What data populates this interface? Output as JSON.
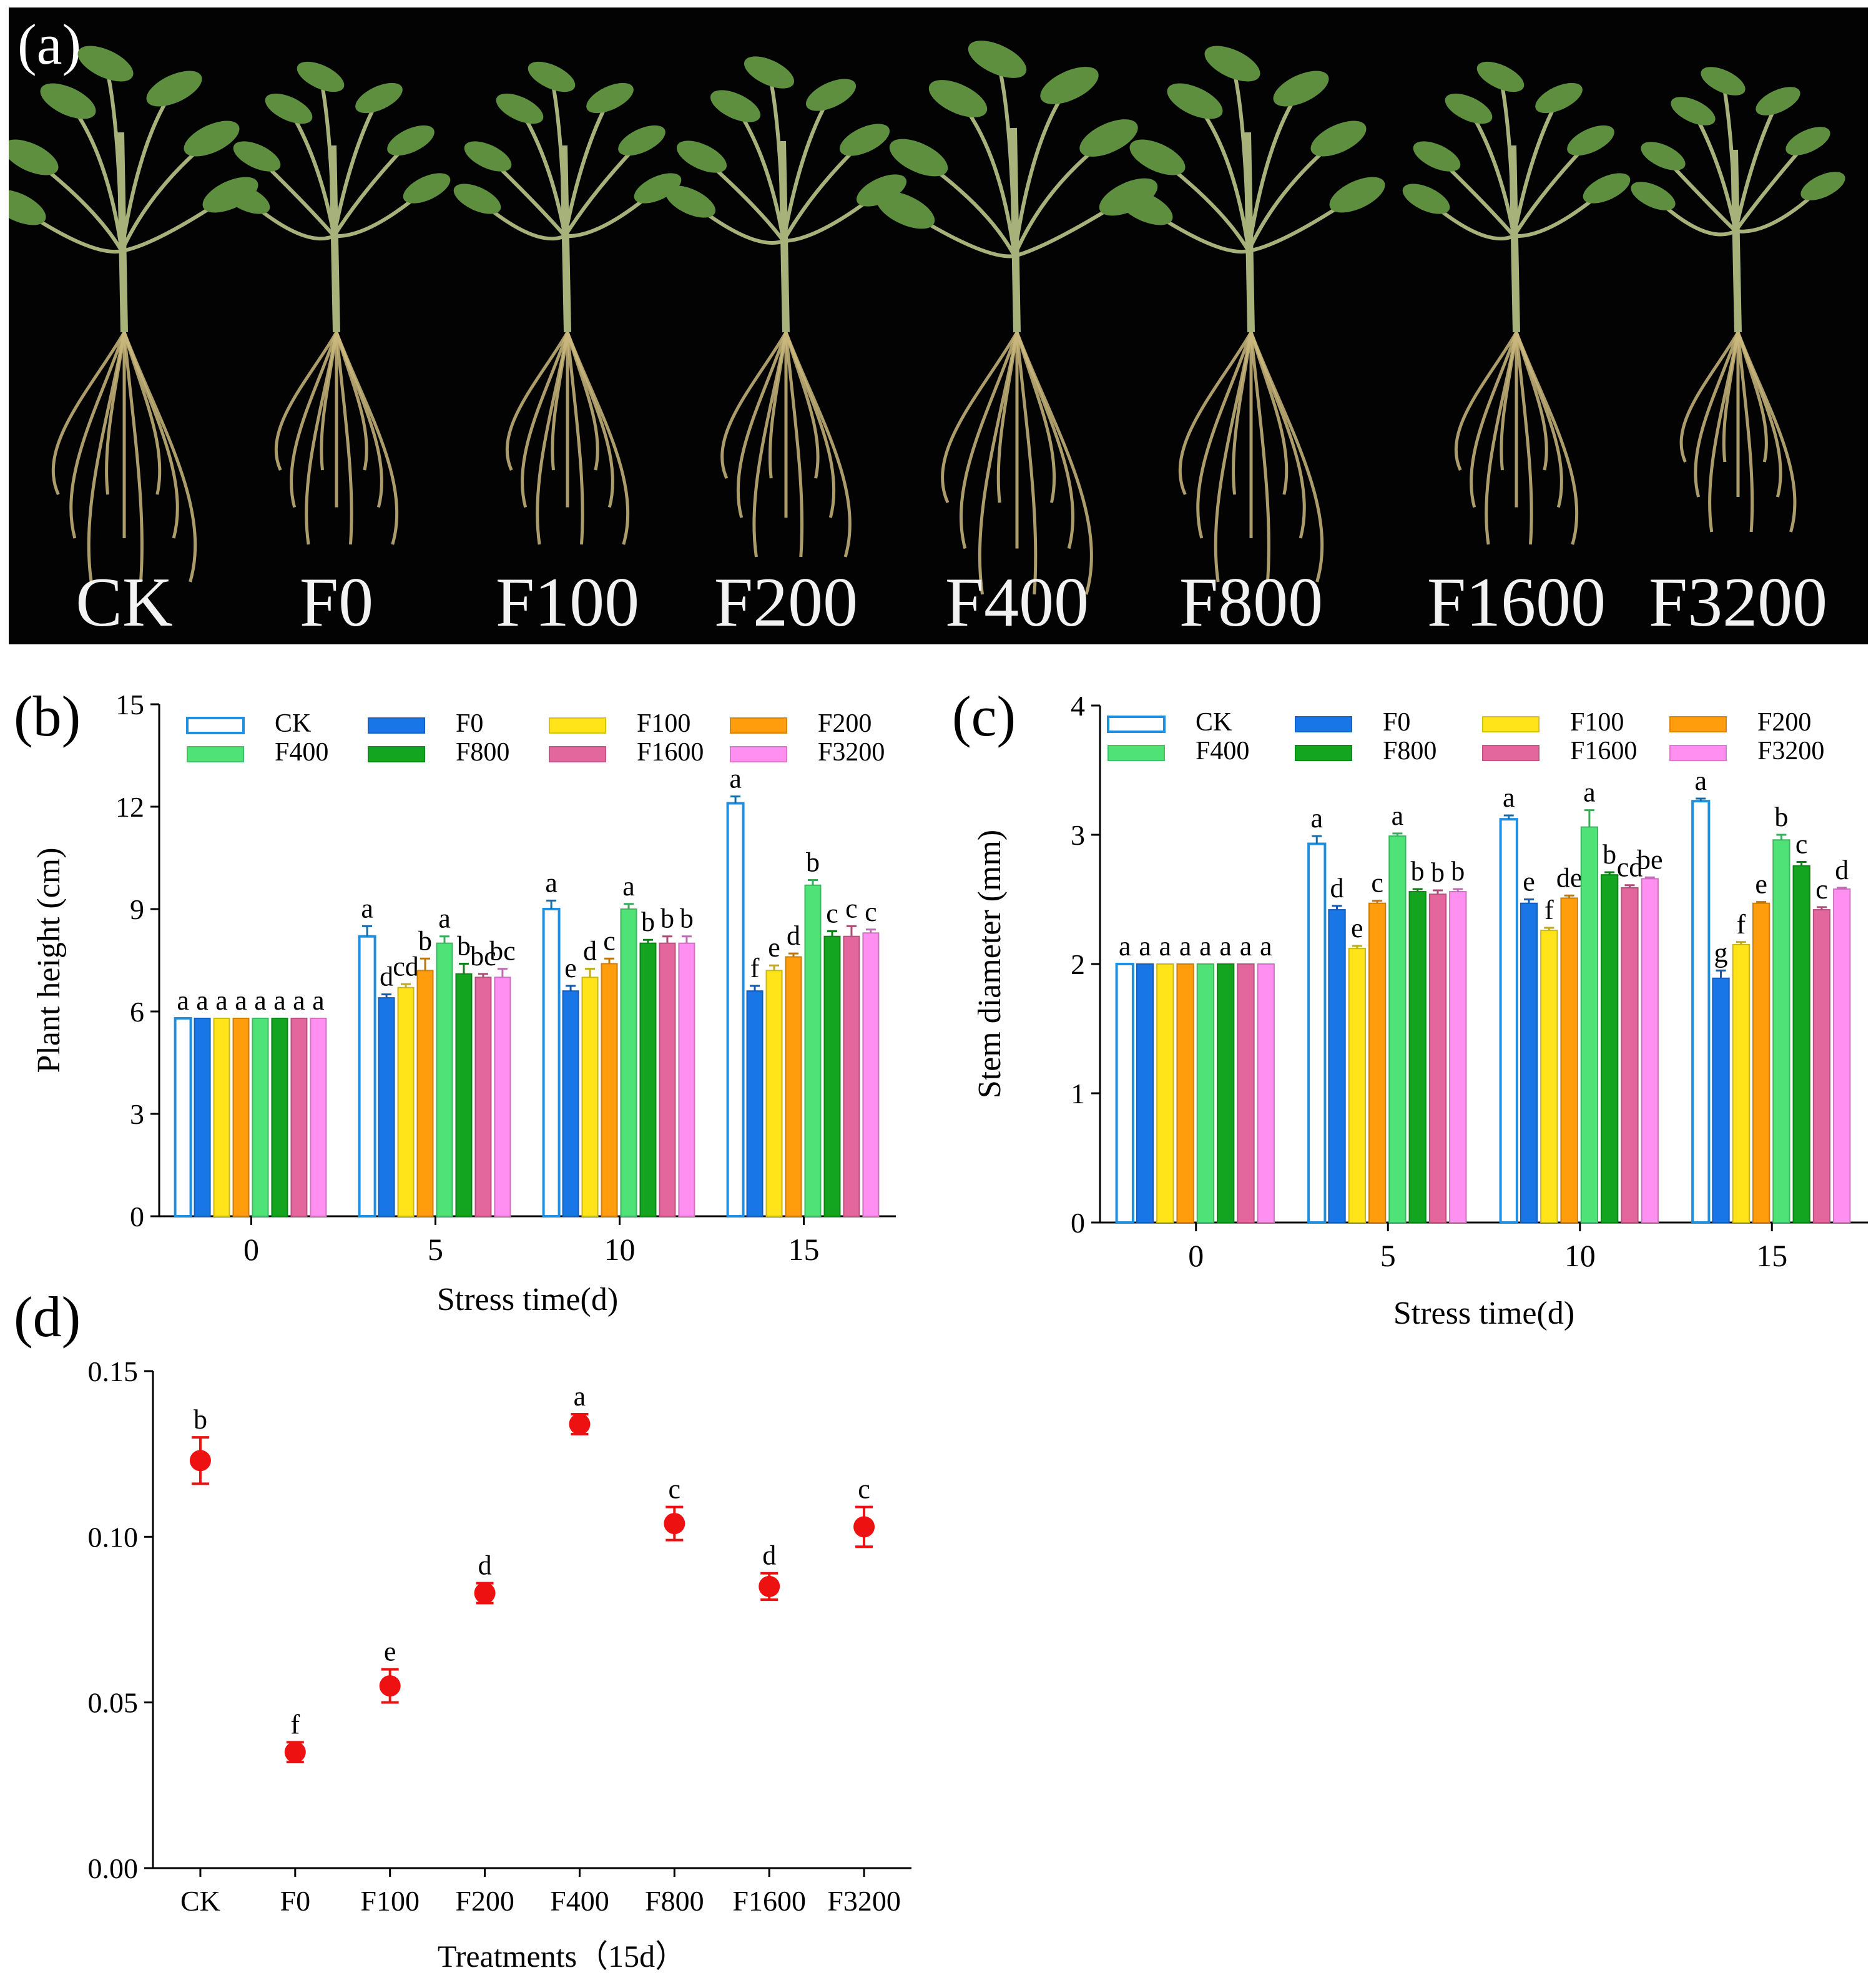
{
  "photo": {
    "label": "(a)",
    "plants": [
      "CK",
      "F0",
      "F100",
      "F200",
      "F400",
      "F800",
      "F1600",
      "F3200"
    ]
  },
  "colors": {
    "CK": "#1f8fe0",
    "F0": "#1976e6",
    "F100": "#ffe41a",
    "F200": "#ff9d0d",
    "F400": "#4fe377",
    "F800": "#13a51f",
    "F1600": "#e3679d",
    "F3200": "#ff8ff0",
    "point": "#ee1111",
    "leaf": "#5e8f3f",
    "stem": "#a7b27a",
    "root": "#c9b77c"
  },
  "chart_data": [
    {
      "id": "b",
      "panel_label": "(b)",
      "type": "bar",
      "title": "",
      "xlabel": "Stress time(d)",
      "ylabel": "Plant height (cm)",
      "categories": [
        "0",
        "5",
        "10",
        "15"
      ],
      "ylim": [
        0,
        15
      ],
      "yticks": [
        "0",
        "3",
        "6",
        "9",
        "12",
        "15"
      ],
      "legend": {
        "placement": "top",
        "order": [
          "CK",
          "F0",
          "F100",
          "F200",
          "F400",
          "F800",
          "F1600",
          "F3200"
        ]
      },
      "series": [
        {
          "name": "CK",
          "hollow": true,
          "values": [
            5.8,
            8.2,
            9.0,
            12.1
          ],
          "errors": [
            0,
            0.3,
            0.25,
            0.2
          ],
          "letters": [
            "a",
            "a",
            "a",
            "a"
          ]
        },
        {
          "name": "F0",
          "values": [
            5.8,
            6.4,
            6.6,
            6.6
          ],
          "errors": [
            0,
            0.1,
            0.15,
            0.15
          ],
          "letters": [
            "a",
            "d",
            "e",
            "f"
          ]
        },
        {
          "name": "F100",
          "values": [
            5.8,
            6.7,
            7.0,
            7.2
          ],
          "errors": [
            0,
            0.1,
            0.25,
            0.15
          ],
          "letters": [
            "a",
            "cd",
            "d",
            "e"
          ]
        },
        {
          "name": "F200",
          "values": [
            5.8,
            7.2,
            7.4,
            7.6
          ],
          "errors": [
            0,
            0.35,
            0.15,
            0.1
          ],
          "letters": [
            "a",
            "b",
            "c",
            "d"
          ]
        },
        {
          "name": "F400",
          "values": [
            5.8,
            8.0,
            9.0,
            9.7
          ],
          "errors": [
            0,
            0.2,
            0.15,
            0.15
          ],
          "letters": [
            "a",
            "a",
            "a",
            "b"
          ]
        },
        {
          "name": "F800",
          "values": [
            5.8,
            7.1,
            8.0,
            8.2
          ],
          "errors": [
            0,
            0.3,
            0.1,
            0.15
          ],
          "letters": [
            "a",
            "b",
            "b",
            "c"
          ]
        },
        {
          "name": "F1600",
          "values": [
            5.8,
            7.0,
            8.0,
            8.2
          ],
          "errors": [
            0,
            0.1,
            0.2,
            0.3
          ],
          "letters": [
            "a",
            "bc",
            "b",
            "c"
          ]
        },
        {
          "name": "F3200",
          "values": [
            5.8,
            7.0,
            8.0,
            8.3
          ],
          "errors": [
            0,
            0.25,
            0.2,
            0.1
          ],
          "letters": [
            "a",
            "bc",
            "b",
            "c"
          ]
        }
      ]
    },
    {
      "id": "c",
      "panel_label": "(c)",
      "type": "bar",
      "title": "",
      "xlabel": "Stress time(d)",
      "ylabel": "Stem diameter (mm)",
      "categories": [
        "0",
        "5",
        "10",
        "15"
      ],
      "ylim": [
        0,
        4
      ],
      "yticks": [
        "0",
        "1",
        "2",
        "3",
        "4"
      ],
      "legend": {
        "placement": "top",
        "order": [
          "CK",
          "F0",
          "F100",
          "F200",
          "F400",
          "F800",
          "F1600",
          "F3200"
        ]
      },
      "series": [
        {
          "name": "CK",
          "hollow": true,
          "values": [
            2.0,
            2.93,
            3.12,
            3.26
          ],
          "errors": [
            0,
            0.06,
            0.03,
            0.02
          ],
          "letters": [
            "a",
            "a",
            "a",
            "a"
          ]
        },
        {
          "name": "F0",
          "values": [
            2.0,
            2.42,
            2.47,
            1.89
          ],
          "errors": [
            0,
            0.03,
            0.03,
            0.06
          ],
          "letters": [
            "a",
            "d",
            "e",
            "g"
          ]
        },
        {
          "name": "F100",
          "values": [
            2.0,
            2.12,
            2.26,
            2.15
          ],
          "errors": [
            0,
            0.02,
            0.02,
            0.02
          ],
          "letters": [
            "a",
            "e",
            "f",
            "f"
          ]
        },
        {
          "name": "F200",
          "values": [
            2.0,
            2.47,
            2.51,
            2.47
          ],
          "errors": [
            0,
            0.02,
            0.02,
            0.01
          ],
          "letters": [
            "a",
            "c",
            "de",
            "e"
          ]
        },
        {
          "name": "F400",
          "values": [
            2.0,
            2.99,
            3.06,
            2.96
          ],
          "errors": [
            0,
            0.02,
            0.13,
            0.04
          ],
          "letters": [
            "a",
            "a",
            "a",
            "b"
          ]
        },
        {
          "name": "F800",
          "values": [
            2.0,
            2.56,
            2.69,
            2.76
          ],
          "errors": [
            0,
            0.02,
            0.02,
            0.03
          ],
          "letters": [
            "a",
            "b",
            "b",
            "c"
          ]
        },
        {
          "name": "F1600",
          "values": [
            2.0,
            2.54,
            2.59,
            2.42
          ],
          "errors": [
            0,
            0.03,
            0.02,
            0.02
          ],
          "letters": [
            "a",
            "b",
            "cd",
            "c"
          ]
        },
        {
          "name": "F3200",
          "values": [
            2.0,
            2.56,
            2.66,
            2.58
          ],
          "errors": [
            0,
            0.02,
            0.01,
            0.01
          ],
          "letters": [
            "a",
            "b",
            "be",
            "d"
          ]
        }
      ]
    },
    {
      "id": "d",
      "panel_label": "(d)",
      "type": "scatter",
      "title": "",
      "xlabel": "Treatments（15d）",
      "ylabel": "",
      "categories": [
        "CK",
        "F0",
        "F100",
        "F200",
        "F400",
        "F800",
        "F1600",
        "F3200"
      ],
      "values": [
        0.123,
        0.035,
        0.055,
        0.083,
        0.134,
        0.104,
        0.085,
        0.103
      ],
      "errors": [
        0.007,
        0.003,
        0.005,
        0.003,
        0.003,
        0.005,
        0.004,
        0.006
      ],
      "letters": [
        "b",
        "f",
        "e",
        "d",
        "a",
        "c",
        "d",
        "c"
      ],
      "ylim": [
        0,
        0.15
      ],
      "yticks": [
        "0.00",
        "0.05",
        "0.10",
        "0.15"
      ]
    }
  ]
}
